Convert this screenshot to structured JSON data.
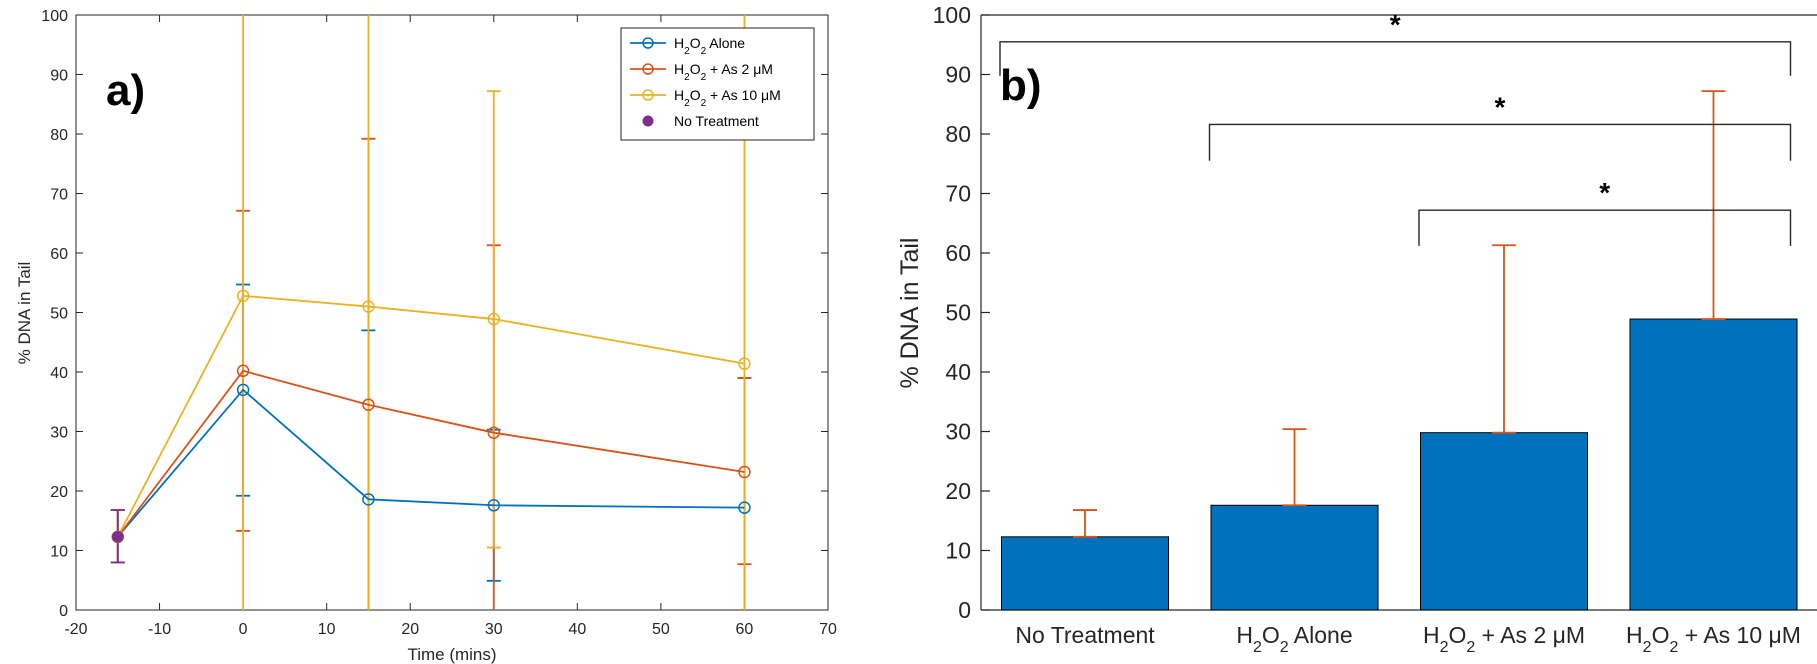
{
  "chart_data": [
    {
      "type": "line",
      "panel_label": "a)",
      "xlabel": "Time (mins)",
      "ylabel": "% DNA in Tail",
      "xlim": [
        -20,
        70
      ],
      "ylim": [
        0,
        100
      ],
      "xticks": [
        -20,
        -10,
        0,
        10,
        20,
        30,
        40,
        50,
        60,
        70
      ],
      "yticks": [
        0,
        10,
        20,
        30,
        40,
        50,
        60,
        70,
        80,
        90,
        100
      ],
      "legend_position": "top-right",
      "series": [
        {
          "name": "H2O2 Alone",
          "color": "#0072BD",
          "marker": "circle",
          "x": [
            -15,
            0,
            15,
            30,
            60
          ],
          "y": [
            12.3,
            37,
            18.6,
            17.6,
            17.2
          ],
          "err_low": [
            8,
            19.2,
            0,
            4.9,
            0
          ],
          "err_high": [
            16.8,
            54.7,
            47,
            30.3,
            39
          ]
        },
        {
          "name": "H2O2 + As 2 μM",
          "color": "#D95319",
          "marker": "circle",
          "x": [
            -15,
            0,
            15,
            30,
            60
          ],
          "y": [
            12.3,
            40.2,
            34.5,
            29.8,
            23.2
          ],
          "err_low": [
            8,
            13.3,
            0,
            0,
            7.7
          ],
          "err_high": [
            16.8,
            67.1,
            79.2,
            61.3,
            39
          ]
        },
        {
          "name": "H2O2 + As 10 μM",
          "color": "#EDB120",
          "marker": "circle",
          "x": [
            -15,
            0,
            15,
            30,
            60
          ],
          "y": [
            12.3,
            52.8,
            51,
            48.9,
            41.4
          ],
          "err_low": [
            8,
            0,
            0,
            10.5,
            0
          ],
          "err_high": [
            16.8,
            100,
            100,
            87.2,
            100
          ]
        },
        {
          "name": "No Treatment",
          "color": "#7E2F8E",
          "marker": "filled-circle",
          "x": [
            -15
          ],
          "y": [
            12.3
          ],
          "err_low": [
            8
          ],
          "err_high": [
            16.8
          ]
        }
      ]
    },
    {
      "type": "bar",
      "panel_label": "b)",
      "xlabel": "",
      "ylabel": "% DNA in Tail",
      "ylim": [
        0,
        100
      ],
      "yticks": [
        0,
        10,
        20,
        30,
        40,
        50,
        60,
        70,
        80,
        90,
        100
      ],
      "categories": [
        "No Treatment",
        "H2O2 Alone",
        "H2O2 + As 2 μM",
        "H2O2 + As 10 μM"
      ],
      "values": [
        12.3,
        17.6,
        29.8,
        48.9
      ],
      "err_high": [
        16.8,
        30.4,
        61.3,
        87.2
      ],
      "bar_color": "#0072BD",
      "error_color": "#D95319",
      "significance": [
        {
          "from": 0,
          "to": 3,
          "label": "*",
          "y": 95.5,
          "left_drop": 89.8,
          "right_drop": 89.8
        },
        {
          "from": 1,
          "to": 3,
          "label": "*",
          "y": 81.6,
          "left_drop": 75.5,
          "right_drop": 75.5
        },
        {
          "from": 2,
          "to": 3,
          "label": "*",
          "y": 67.2,
          "left_drop": 61.2,
          "right_drop": 61.2
        }
      ]
    }
  ]
}
